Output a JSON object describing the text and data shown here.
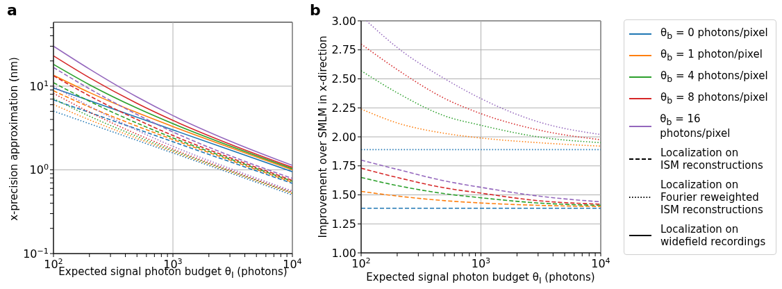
{
  "chart_data": [
    {
      "type": "line",
      "title": "a",
      "xlabel": "Expected signal photon budget θ$_{I}$ (photons)",
      "ylabel": "x-precision approximation (nm)",
      "log": "xy",
      "grid": true,
      "legend": "right",
      "x": [
        100,
        200,
        500,
        1000,
        3000,
        10000
      ],
      "xlim": [
        100,
        10000
      ],
      "xticks": [
        {
          "value": 100,
          "label": "10$^{2}$"
        },
        {
          "value": 200,
          "label": null
        },
        {
          "value": 300,
          "label": null
        },
        {
          "value": 400,
          "label": null
        },
        {
          "value": 500,
          "label": null
        },
        {
          "value": 600,
          "label": null
        },
        {
          "value": 700,
          "label": null
        },
        {
          "value": 800,
          "label": null
        },
        {
          "value": 900,
          "label": null
        },
        {
          "value": 1000,
          "label": "10$^{3}$"
        },
        {
          "value": 2000,
          "label": null
        },
        {
          "value": 3000,
          "label": null
        },
        {
          "value": 4000,
          "label": null
        },
        {
          "value": 5000,
          "label": null
        },
        {
          "value": 6000,
          "label": null
        },
        {
          "value": 7000,
          "label": null
        },
        {
          "value": 8000,
          "label": null
        },
        {
          "value": 9000,
          "label": null
        },
        {
          "value": 10000,
          "label": "10$^{4}$"
        }
      ],
      "ylim": [
        0.1,
        58
      ],
      "yticks": [
        {
          "value": 0.1,
          "label": "10$^{−1}$"
        },
        {
          "value": 0.2,
          "label": null
        },
        {
          "value": 0.3,
          "label": null
        },
        {
          "value": 0.4,
          "label": null
        },
        {
          "value": 0.5,
          "label": null
        },
        {
          "value": 0.6,
          "label": null
        },
        {
          "value": 0.7,
          "label": null
        },
        {
          "value": 0.8,
          "label": null
        },
        {
          "value": 0.9,
          "label": null
        },
        {
          "value": 1,
          "label": "10$^{0}$"
        },
        {
          "value": 2,
          "label": null
        },
        {
          "value": 3,
          "label": null
        },
        {
          "value": 4,
          "label": null
        },
        {
          "value": 5,
          "label": null
        },
        {
          "value": 6,
          "label": null
        },
        {
          "value": 7,
          "label": null
        },
        {
          "value": 8,
          "label": null
        },
        {
          "value": 9,
          "label": null
        },
        {
          "value": 10,
          "label": "10$^{1}$"
        },
        {
          "value": 20,
          "label": null
        },
        {
          "value": 30,
          "label": null
        },
        {
          "value": 40,
          "label": null
        },
        {
          "value": 50,
          "label": null
        }
      ],
      "series": [
        {
          "name": "θ$_{b}$ = 0 photons/pixel",
          "color": "#1f77b4",
          "line_style": "solid",
          "values": [
            9.5,
            6.72,
            4.25,
            3.0,
            1.73,
            0.95
          ]
        },
        {
          "name": "θ$_{b}$ = 1 photon/pixel",
          "color": "#ff7f0e",
          "line_style": "solid",
          "values": [
            13.5,
            8.4,
            4.83,
            3.29,
            1.85,
            1.0
          ]
        },
        {
          "name": "θ$_{b}$ = 4 photons/pixel",
          "color": "#2ca02c",
          "line_style": "solid",
          "values": [
            18.2,
            10.4,
            5.47,
            3.56,
            1.93,
            1.03
          ]
        },
        {
          "name": "θ$_{b}$ = 8 photons/pixel",
          "color": "#d62728",
          "line_style": "solid",
          "values": [
            23,
            12.6,
            6.23,
            3.9,
            2.03,
            1.07
          ]
        },
        {
          "name": "θ$_{b}$ = 16 photons/pixel",
          "color": "#9467bd",
          "line_style": "solid",
          "values": [
            30,
            16,
            7.43,
            4.45,
            2.21,
            1.13
          ]
        },
        {
          "color": "#1f77b4",
          "line_style": "dashed",
          "values": [
            6.86,
            4.85,
            3.07,
            2.17,
            1.25,
            0.69
          ]
        },
        {
          "color": "#ff7f0e",
          "line_style": "dashed",
          "values": [
            8.8,
            5.64,
            3.33,
            2.3,
            1.31,
            0.71
          ]
        },
        {
          "color": "#2ca02c",
          "line_style": "dashed",
          "values": [
            11,
            6.6,
            3.62,
            2.41,
            1.35,
            0.73
          ]
        },
        {
          "color": "#d62728",
          "line_style": "dashed",
          "values": [
            13.3,
            7.66,
            3.99,
            2.57,
            1.4,
            0.75
          ]
        },
        {
          "color": "#9467bd",
          "line_style": "dashed",
          "values": [
            16.7,
            9.3,
            4.59,
            2.84,
            1.48,
            0.79
          ]
        },
        {
          "color": "#1f77b4",
          "line_style": "dotted",
          "values": [
            5.03,
            3.56,
            2.25,
            1.59,
            0.92,
            0.5
          ]
        },
        {
          "color": "#ff7f0e",
          "line_style": "dotted",
          "values": [
            6.03,
            3.96,
            2.38,
            1.65,
            0.95,
            0.52
          ]
        },
        {
          "color": "#2ca02c",
          "line_style": "dotted",
          "values": [
            7.08,
            4.38,
            2.51,
            1.7,
            0.97,
            0.53
          ]
        },
        {
          "color": "#d62728",
          "line_style": "dotted",
          "values": [
            8.2,
            4.9,
            2.67,
            1.77,
            0.99,
            0.54
          ]
        },
        {
          "color": "#9467bd",
          "line_style": "dotted",
          "values": [
            9.9,
            5.77,
            2.97,
            1.91,
            1.04,
            0.56
          ]
        },
        {
          "name": "Localization on\nISM reconstructions",
          "color": "#000000",
          "line_style": "dashed",
          "values": [
            null,
            null,
            null,
            null,
            null,
            null
          ]
        },
        {
          "name": "Localization on\nFourier reweighted\nISM reconstructions",
          "color": "#000000",
          "line_style": "dotted",
          "values": [
            null,
            null,
            null,
            null,
            null,
            null
          ]
        },
        {
          "name": "Localization on\nwidefield recordings",
          "color": "#000000",
          "line_style": "solid",
          "values": [
            null,
            null,
            null,
            null,
            null,
            null
          ]
        }
      ]
    },
    {
      "type": "line",
      "title": "b",
      "xlabel": "Expected signal photon budget θ$_{I}$ (photons)",
      "ylabel": "Improvement over SMLM in x-direction",
      "log": "x",
      "grid": true,
      "x": [
        100,
        200,
        500,
        1000,
        3000,
        10000
      ],
      "xlim": [
        100,
        10000
      ],
      "xticks": [
        {
          "value": 100,
          "label": "10$^{2}$"
        },
        {
          "value": 200,
          "label": null
        },
        {
          "value": 300,
          "label": null
        },
        {
          "value": 400,
          "label": null
        },
        {
          "value": 500,
          "label": null
        },
        {
          "value": 600,
          "label": null
        },
        {
          "value": 700,
          "label": null
        },
        {
          "value": 800,
          "label": null
        },
        {
          "value": 900,
          "label": null
        },
        {
          "value": 1000,
          "label": "10$^{3}$"
        },
        {
          "value": 2000,
          "label": null
        },
        {
          "value": 3000,
          "label": null
        },
        {
          "value": 4000,
          "label": null
        },
        {
          "value": 5000,
          "label": null
        },
        {
          "value": 6000,
          "label": null
        },
        {
          "value": 7000,
          "label": null
        },
        {
          "value": 8000,
          "label": null
        },
        {
          "value": 9000,
          "label": null
        },
        {
          "value": 10000,
          "label": "10$^{4}$"
        }
      ],
      "ylim": [
        1,
        3
      ],
      "yticks": [
        {
          "value": 1,
          "label": "1.00"
        },
        {
          "value": 1.25,
          "label": "1.25"
        },
        {
          "value": 1.5,
          "label": "1.50"
        },
        {
          "value": 1.75,
          "label": "1.75"
        },
        {
          "value": 2,
          "label": "2.00"
        },
        {
          "value": 2.25,
          "label": "2.25"
        },
        {
          "value": 2.5,
          "label": "2.50"
        },
        {
          "value": 2.75,
          "label": "2.75"
        },
        {
          "value": 3,
          "label": "3.00"
        }
      ],
      "series": [
        {
          "color": "#1f77b4",
          "line_style": "dashed",
          "values": [
            1.385,
            1.385,
            1.385,
            1.385,
            1.385,
            1.385
          ]
        },
        {
          "color": "#ff7f0e",
          "line_style": "dashed",
          "values": [
            1.53,
            1.49,
            1.45,
            1.43,
            1.41,
            1.4
          ]
        },
        {
          "color": "#2ca02c",
          "line_style": "dashed",
          "values": [
            1.65,
            1.58,
            1.51,
            1.475,
            1.43,
            1.41
          ]
        },
        {
          "color": "#d62728",
          "line_style": "dashed",
          "values": [
            1.73,
            1.65,
            1.56,
            1.515,
            1.45,
            1.42
          ]
        },
        {
          "color": "#9467bd",
          "line_style": "dashed",
          "values": [
            1.8,
            1.72,
            1.62,
            1.565,
            1.49,
            1.44
          ]
        },
        {
          "color": "#1f77b4",
          "line_style": "dotted",
          "values": [
            1.89,
            1.89,
            1.89,
            1.89,
            1.89,
            1.89
          ]
        },
        {
          "color": "#ff7f0e",
          "line_style": "dotted",
          "values": [
            2.24,
            2.12,
            2.03,
            1.99,
            1.95,
            1.92
          ]
        },
        {
          "color": "#2ca02c",
          "line_style": "dotted",
          "values": [
            2.57,
            2.38,
            2.18,
            2.1,
            2.0,
            1.95
          ]
        },
        {
          "color": "#d62728",
          "line_style": "dotted",
          "values": [
            2.8,
            2.58,
            2.33,
            2.2,
            2.06,
            1.975
          ]
        },
        {
          "color": "#9467bd",
          "line_style": "dotted",
          "x": [
            111,
            200,
            500,
            1000,
            3000,
            10000
          ],
          "values": [
            3.0,
            2.77,
            2.5,
            2.33,
            2.13,
            2.02
          ]
        }
      ]
    }
  ]
}
